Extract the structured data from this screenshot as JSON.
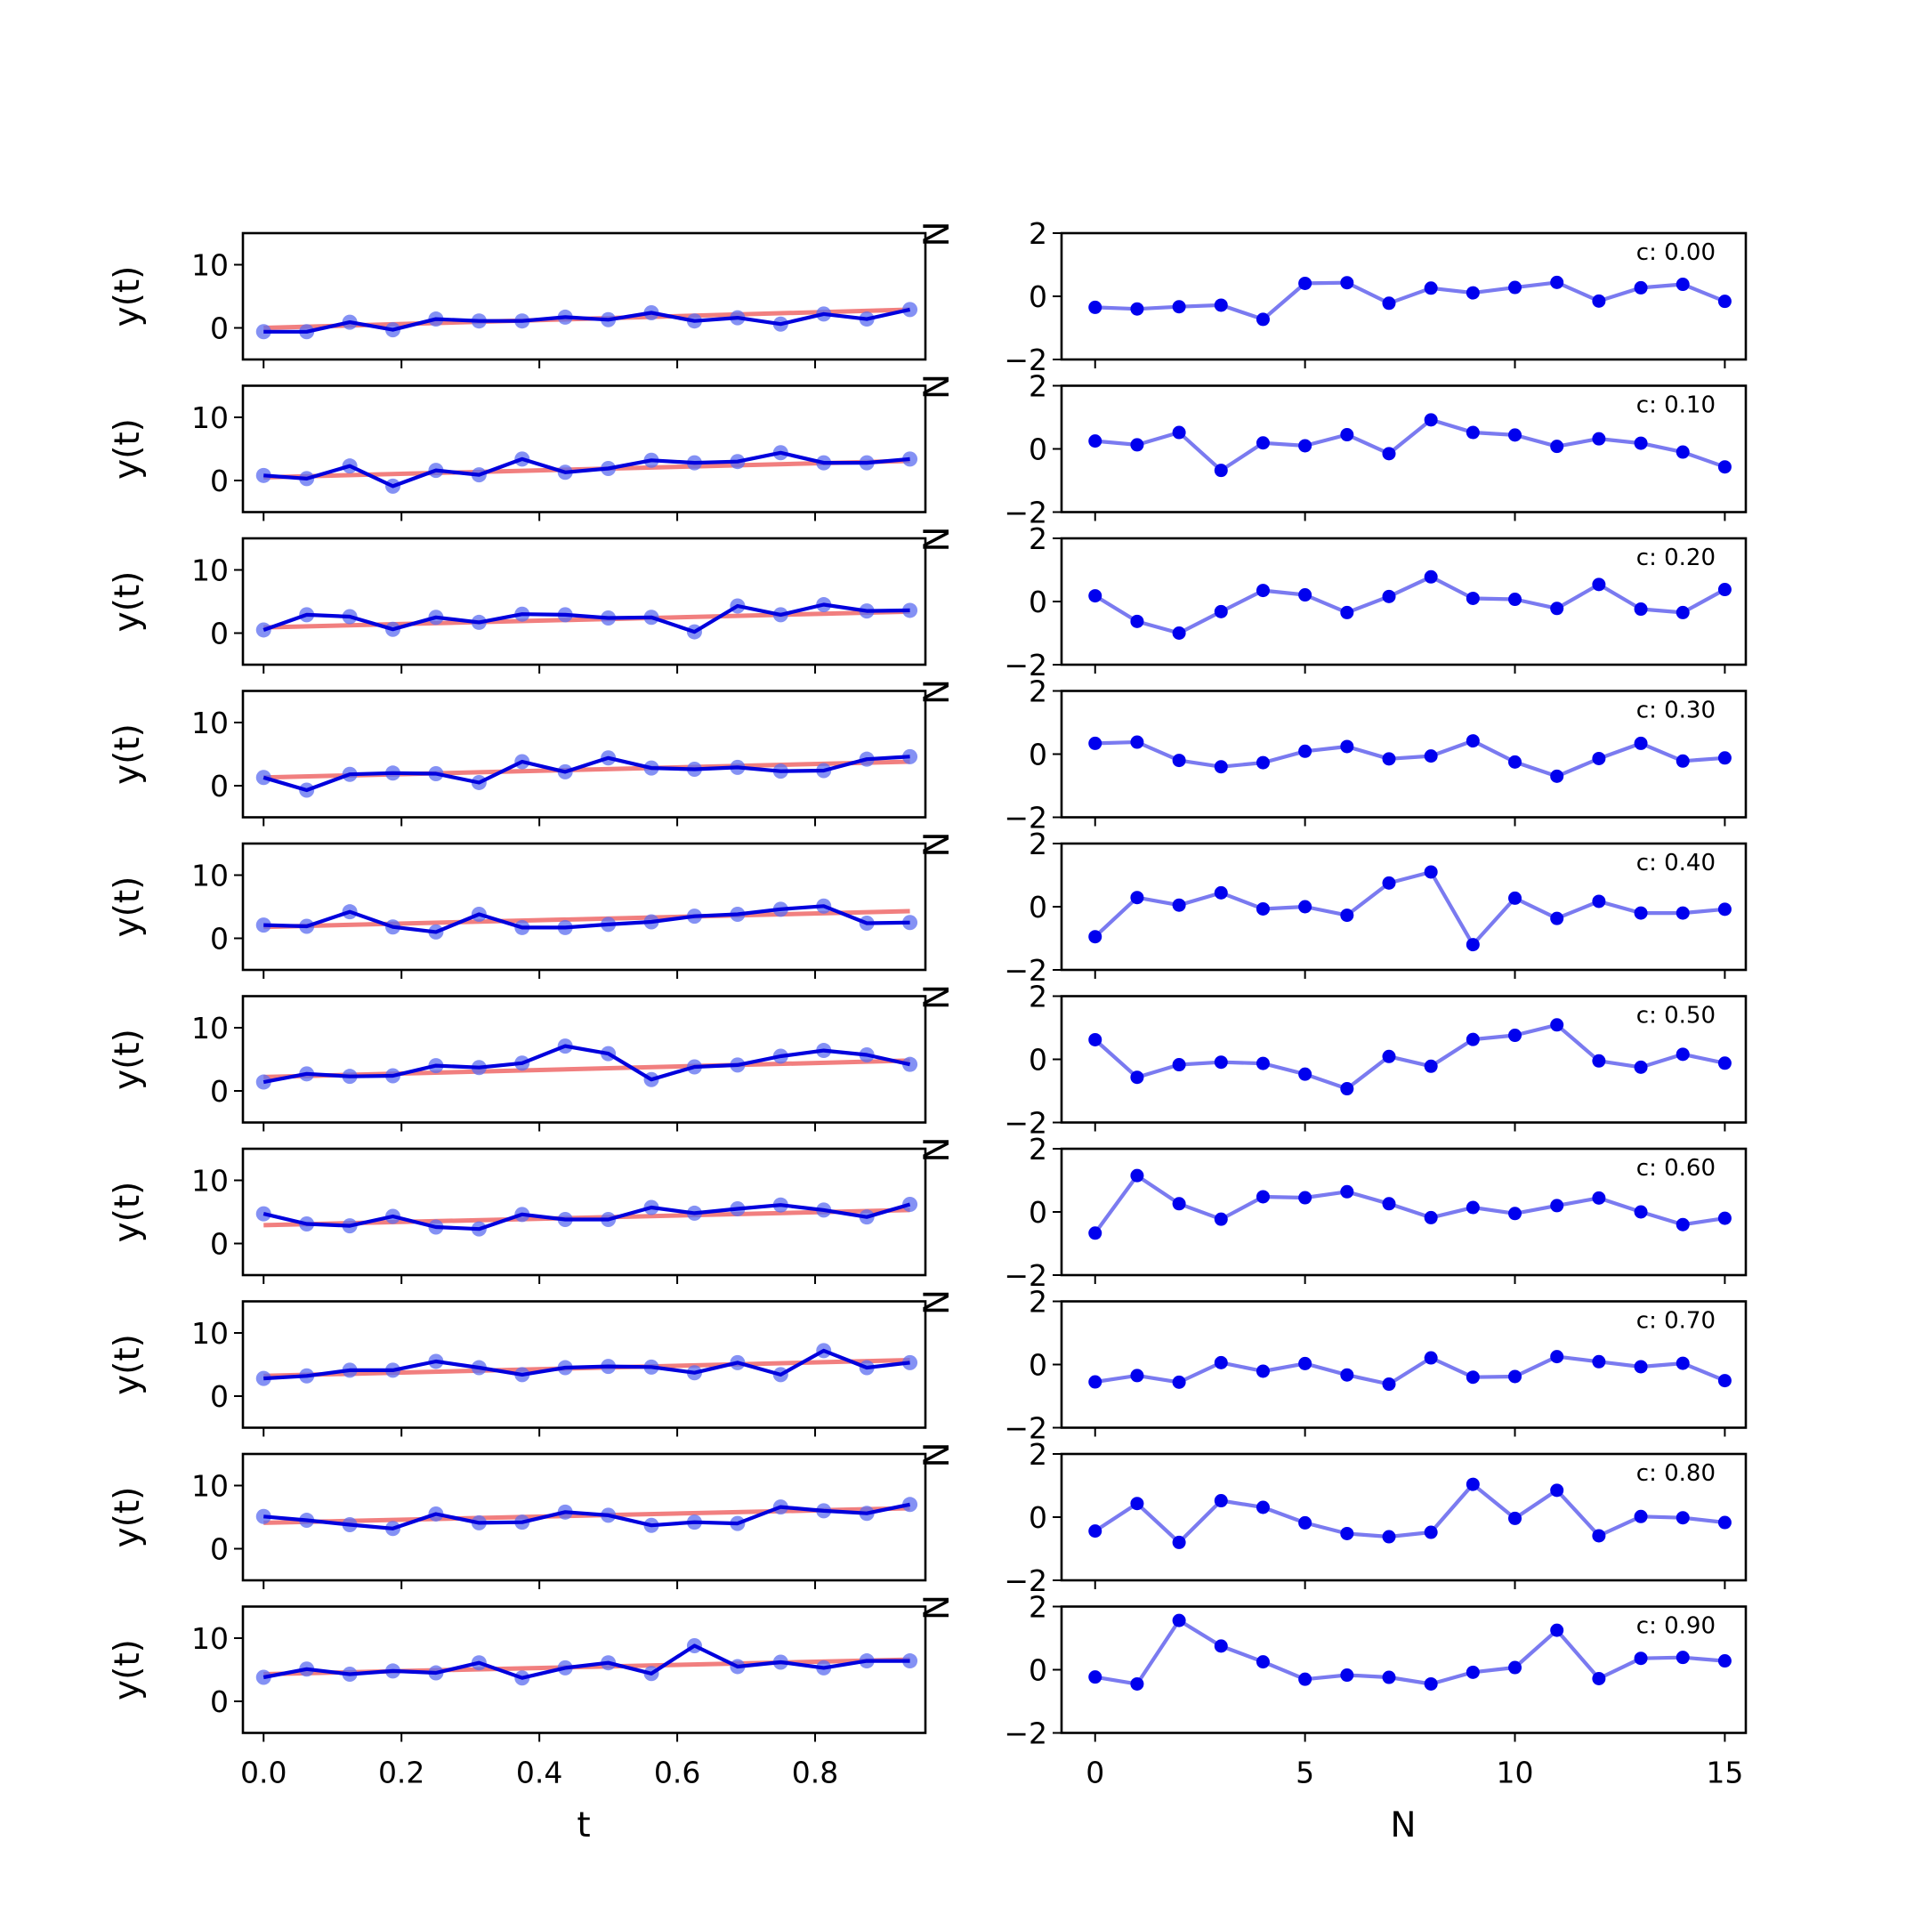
{
  "figure": {
    "left_column": {
      "ylabel": "y(t)",
      "xlabel": "t",
      "yticks": [
        "0",
        "10"
      ],
      "xticks": [
        "0.0",
        "0.2",
        "0.4",
        "0.6",
        "0.8"
      ],
      "ylim": [
        -5,
        15
      ],
      "xlim": [
        -0.03,
        0.96
      ],
      "line_color": "#0000dd",
      "marker_color": "#5b6cf0",
      "fit_color": "#f07878"
    },
    "right_column": {
      "xlabel": "N",
      "yticks": [
        "−2",
        "0",
        "2"
      ],
      "xticks": [
        "0",
        "5",
        "10",
        "15"
      ],
      "ylim": [
        -2,
        2
      ],
      "xlim": [
        -0.8,
        15.5
      ],
      "line_color": "#7a7af0",
      "marker_color": "#0000ee"
    },
    "clipped_side_label": "N"
  },
  "chart_data": [
    {
      "type": "line",
      "panel": "left",
      "x": [
        0.0,
        0.0625,
        0.125,
        0.1875,
        0.25,
        0.3125,
        0.375,
        0.4375,
        0.5,
        0.5625,
        0.625,
        0.6875,
        0.75,
        0.8125,
        0.875,
        0.9375
      ],
      "rows": [
        {
          "y": [
            -0.6,
            -0.6,
            0.9,
            -0.3,
            1.4,
            1.1,
            1.1,
            1.7,
            1.3,
            2.4,
            1.1,
            1.6,
            0.6,
            2.2,
            1.4,
            2.9
          ],
          "fit": [
            0.0,
            2.9
          ]
        },
        {
          "y": [
            0.8,
            0.3,
            2.3,
            -0.9,
            1.6,
            0.9,
            3.4,
            1.3,
            1.9,
            3.2,
            2.8,
            3.0,
            4.4,
            2.8,
            2.8,
            3.4
          ],
          "fit": [
            0.5,
            3.1
          ]
        },
        {
          "y": [
            0.5,
            2.9,
            2.6,
            0.6,
            2.5,
            1.7,
            3.0,
            2.9,
            2.4,
            2.5,
            0.2,
            4.3,
            2.9,
            4.5,
            3.5,
            3.6
          ],
          "fit": [
            0.9,
            3.4
          ]
        },
        {
          "y": [
            1.3,
            -0.7,
            1.8,
            2.0,
            1.9,
            0.5,
            3.8,
            2.2,
            4.4,
            2.8,
            2.6,
            2.9,
            2.3,
            2.4,
            4.2,
            4.6
          ],
          "fit": [
            1.3,
            3.8
          ]
        },
        {
          "y": [
            2.1,
            1.9,
            4.2,
            1.8,
            1.0,
            3.8,
            1.7,
            1.7,
            2.2,
            2.6,
            3.5,
            3.8,
            4.6,
            5.1,
            2.4,
            2.5
          ],
          "fit": [
            1.8,
            4.3
          ]
        },
        {
          "y": [
            1.4,
            2.7,
            2.3,
            2.4,
            4.0,
            3.7,
            4.4,
            7.1,
            5.9,
            1.8,
            3.8,
            4.1,
            5.5,
            6.4,
            5.7,
            4.2
          ],
          "fit": [
            2.2,
            4.8
          ]
        },
        {
          "y": [
            4.7,
            3.1,
            2.8,
            4.3,
            2.6,
            2.3,
            4.6,
            3.8,
            3.8,
            5.7,
            4.8,
            5.5,
            6.1,
            5.3,
            4.2,
            6.2
          ],
          "fit": [
            2.9,
            5.3
          ]
        },
        {
          "y": [
            2.8,
            3.2,
            4.1,
            4.1,
            5.5,
            4.5,
            3.4,
            4.5,
            4.7,
            4.6,
            3.7,
            5.3,
            3.4,
            7.2,
            4.5,
            5.3
          ],
          "fit": [
            3.2,
            5.7
          ]
        },
        {
          "y": [
            5.1,
            4.5,
            3.8,
            3.2,
            5.5,
            4.1,
            4.2,
            5.8,
            5.3,
            3.7,
            4.2,
            4.0,
            6.6,
            6.0,
            5.6,
            7.0
          ],
          "fit": [
            4.1,
            6.4
          ]
        },
        {
          "y": [
            3.8,
            5.1,
            4.3,
            4.8,
            4.5,
            6.1,
            3.7,
            5.3,
            6.1,
            4.4,
            8.8,
            5.5,
            6.2,
            5.3,
            6.4,
            6.4
          ],
          "fit": [
            4.3,
            6.6
          ]
        }
      ]
    },
    {
      "type": "line",
      "panel": "right",
      "x": [
        0,
        1,
        2,
        3,
        4,
        5,
        6,
        7,
        8,
        9,
        10,
        11,
        12,
        13,
        14,
        15
      ],
      "rows": [
        {
          "annotation": "c: 0.00",
          "y": [
            -0.35,
            -0.4,
            -0.33,
            -0.28,
            -0.73,
            0.41,
            0.43,
            -0.22,
            0.26,
            0.11,
            0.28,
            0.44,
            -0.15,
            0.27,
            0.38,
            -0.16
          ]
        },
        {
          "annotation": "c: 0.10",
          "y": [
            0.25,
            0.13,
            0.52,
            -0.68,
            0.19,
            0.1,
            0.45,
            -0.15,
            0.92,
            0.52,
            0.44,
            0.08,
            0.32,
            0.18,
            -0.1,
            -0.57
          ]
        },
        {
          "annotation": "c: 0.20",
          "y": [
            0.18,
            -0.63,
            -1.0,
            -0.32,
            0.35,
            0.21,
            -0.35,
            0.16,
            0.78,
            0.1,
            0.07,
            -0.22,
            0.54,
            -0.24,
            -0.35,
            0.38
          ]
        },
        {
          "annotation": "c: 0.30",
          "y": [
            0.34,
            0.38,
            -0.2,
            -0.4,
            -0.27,
            0.09,
            0.24,
            -0.15,
            -0.06,
            0.42,
            -0.25,
            -0.7,
            -0.14,
            0.34,
            -0.22,
            -0.12
          ]
        },
        {
          "annotation": "c: 0.40",
          "y": [
            -0.95,
            0.29,
            0.05,
            0.44,
            -0.07,
            0.0,
            -0.27,
            0.75,
            1.1,
            -1.2,
            0.27,
            -0.37,
            0.17,
            -0.2,
            -0.2,
            -0.08
          ]
        },
        {
          "annotation": "c: 0.50",
          "y": [
            0.62,
            -0.57,
            -0.17,
            -0.09,
            -0.13,
            -0.47,
            -0.93,
            0.09,
            -0.22,
            0.63,
            0.76,
            1.09,
            -0.05,
            -0.25,
            0.16,
            -0.12
          ]
        },
        {
          "annotation": "c: 0.60",
          "y": [
            -0.67,
            1.15,
            0.26,
            -0.23,
            0.48,
            0.45,
            0.64,
            0.26,
            -0.18,
            0.14,
            -0.05,
            0.2,
            0.44,
            0.0,
            -0.4,
            -0.2
          ]
        },
        {
          "annotation": "c: 0.70",
          "y": [
            -0.55,
            -0.35,
            -0.56,
            0.06,
            -0.21,
            0.03,
            -0.33,
            -0.62,
            0.21,
            -0.4,
            -0.38,
            0.25,
            0.09,
            -0.07,
            0.04,
            -0.51
          ]
        },
        {
          "annotation": "c: 0.80",
          "y": [
            -0.44,
            0.43,
            -0.8,
            0.52,
            0.31,
            -0.18,
            -0.52,
            -0.62,
            -0.48,
            1.04,
            -0.04,
            0.85,
            -0.59,
            0.02,
            -0.02,
            -0.17
          ]
        },
        {
          "annotation": "c: 0.90",
          "y": [
            -0.23,
            -0.45,
            1.56,
            0.75,
            0.25,
            -0.3,
            -0.17,
            -0.24,
            -0.45,
            -0.08,
            0.07,
            1.25,
            -0.28,
            0.36,
            0.39,
            0.28
          ]
        }
      ]
    }
  ]
}
